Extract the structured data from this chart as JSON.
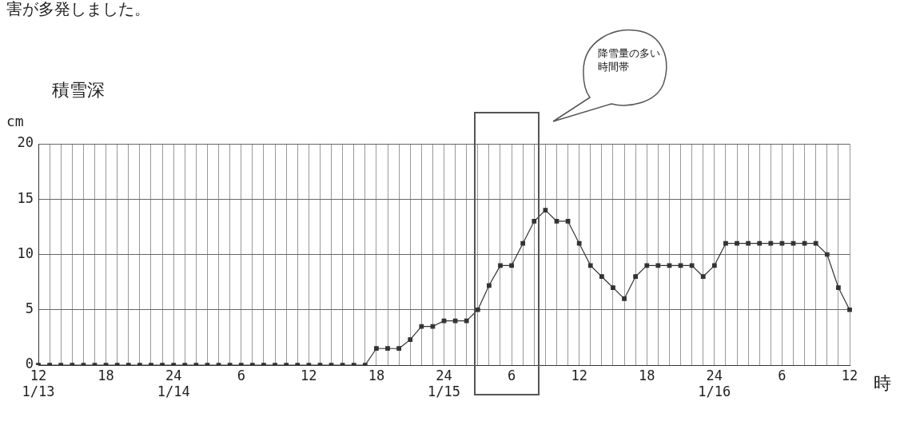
{
  "chart_data": {
    "type": "line",
    "ylabel": "積雪深\ncm",
    "xlabel": "時",
    "categories": [
      "12\n1/13",
      null,
      null,
      null,
      null,
      null,
      "18",
      null,
      null,
      null,
      null,
      null,
      "24\n1/14",
      null,
      null,
      null,
      null,
      null,
      "6",
      null,
      null,
      null,
      null,
      null,
      "12",
      null,
      null,
      null,
      null,
      null,
      "18",
      null,
      null,
      null,
      null,
      null,
      "24\n1/15",
      null,
      null,
      null,
      null,
      null,
      "6",
      null,
      null,
      null,
      null,
      null,
      "12",
      null,
      null,
      null,
      null,
      null,
      "18",
      null,
      null,
      null,
      null,
      null,
      "24\n1/16",
      null,
      null,
      null,
      null,
      null,
      "6",
      null,
      null,
      null,
      null,
      null,
      "12"
    ],
    "series": [
      {
        "color": "#333333",
        "values": [
          0,
          0,
          0,
          0,
          0,
          0,
          0,
          0,
          0,
          0,
          0,
          0,
          0,
          0,
          0,
          0,
          0,
          0,
          0,
          0,
          0,
          0,
          0,
          0,
          0,
          0,
          0,
          0,
          0,
          0,
          1.5,
          1.5,
          1.5,
          2.3,
          3.5,
          3.5,
          4,
          4,
          4,
          5,
          7.2,
          9,
          9,
          11,
          13,
          14,
          13,
          13,
          11,
          9,
          8,
          7,
          6,
          8,
          9,
          9,
          9,
          9,
          9,
          8,
          9,
          11,
          11,
          11,
          11,
          11,
          11,
          11,
          11,
          11,
          10,
          7,
          5
        ]
      }
    ],
    "ylim": [
      0,
      20
    ],
    "yticks": [
      0,
      5,
      10,
      15,
      20
    ],
    "annotations": [
      "害が多発しました。",
      "降雪量の多い時間帯"
    ],
    "grid": true,
    "legend": false,
    "marker": "square",
    "line_style": "solid"
  }
}
